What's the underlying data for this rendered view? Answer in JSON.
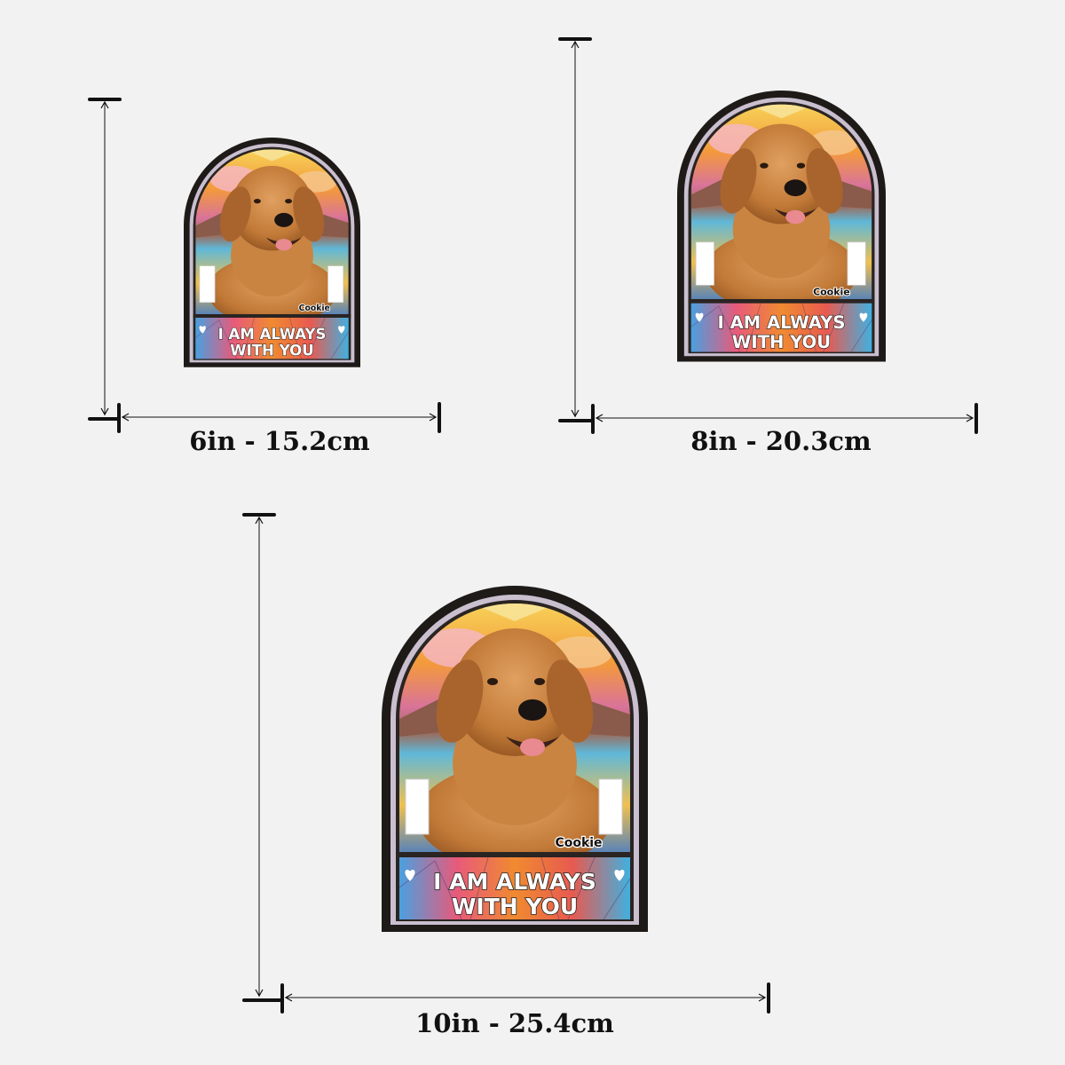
{
  "colors": {
    "background": "#f2f2f2",
    "frame": "#1e1a18",
    "line": "#111111"
  },
  "plaque": {
    "pet_name": "Cookie",
    "line1": "I AM ALWAYS",
    "line2": "WITH YOU",
    "heart_icon": "heart"
  },
  "sizes": [
    {
      "label": "6in - 15.2cm"
    },
    {
      "label": "8in - 20.3cm"
    },
    {
      "label": "10in - 25.4cm"
    }
  ]
}
